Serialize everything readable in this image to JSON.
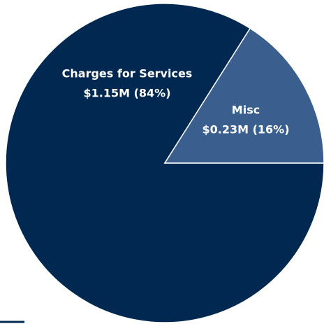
{
  "chart_data": {
    "type": "pie",
    "categories": [
      "Charges for Services",
      "Misc"
    ],
    "values": [
      84,
      16
    ],
    "value_labels": [
      "$1.15M (84%)",
      "$0.23M (16%)"
    ],
    "colors": [
      "#012851",
      "#3a5f8e"
    ]
  }
}
